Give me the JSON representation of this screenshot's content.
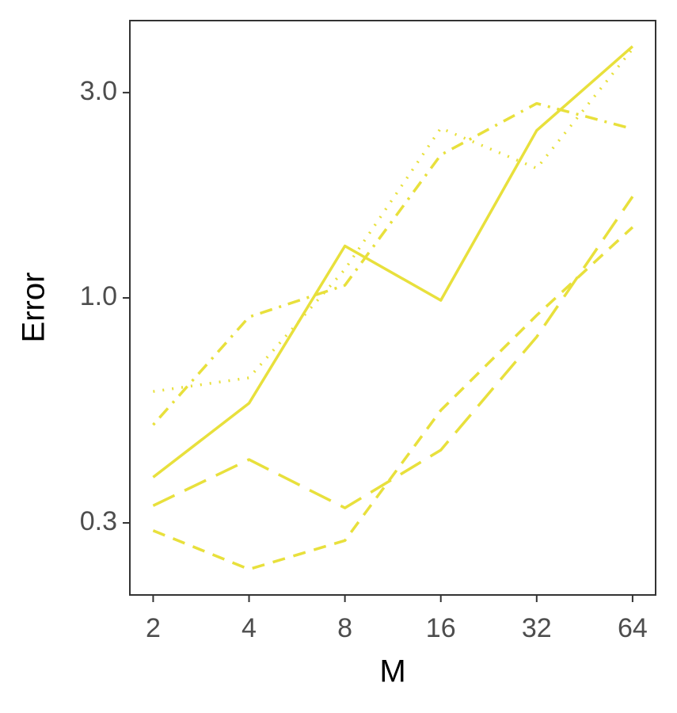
{
  "chart_data": {
    "type": "line",
    "x_label": "M",
    "y_label": "Error",
    "x": [
      2,
      4,
      8,
      16,
      32,
      64
    ],
    "xlim": [
      1.69,
      75.6
    ],
    "xticks": [
      2,
      4,
      8,
      16,
      32,
      64
    ],
    "xlog": true,
    "ylim": [
      0.204,
      4.41
    ],
    "yticks": [
      0.3,
      {
        "value": 1,
        "label": "1.0"
      },
      {
        "value": 3,
        "label": "3.0"
      }
    ],
    "ylog": true,
    "grid": false,
    "series": [
      {
        "color": "#e8e03c",
        "dash": "solid",
        "values": [
          0.383,
          0.569,
          1.32,
          0.987,
          2.45,
          3.84
        ]
      },
      {
        "color": "#e8e03c",
        "dash": "dotted",
        "values": [
          0.606,
          0.652,
          1.165,
          2.48,
          2.0,
          3.79
        ]
      },
      {
        "color": "#e8e03c",
        "dash": "dotdash",
        "values": [
          0.507,
          0.903,
          1.07,
          2.15,
          2.83,
          2.47
        ]
      },
      {
        "color": "#e8e03c",
        "dash": "longdash",
        "values": [
          0.329,
          0.421,
          0.325,
          0.443,
          0.812,
          1.72
        ]
      },
      {
        "color": "#e8e03c",
        "dash": "dashed",
        "values": [
          0.288,
          0.234,
          0.273,
          0.548,
          0.911,
          1.46
        ]
      }
    ]
  }
}
